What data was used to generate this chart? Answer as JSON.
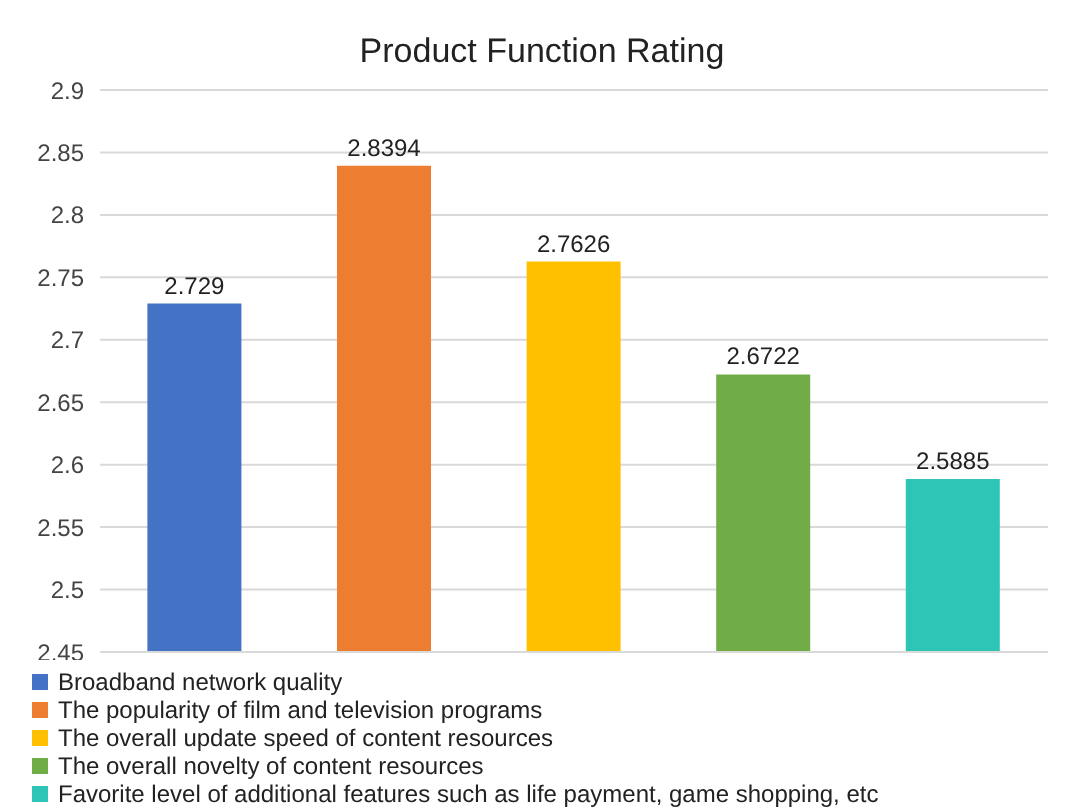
{
  "chart_data": {
    "type": "bar",
    "title": "Product Function Rating",
    "categories": [
      null,
      null,
      null,
      null,
      null
    ],
    "series": [
      {
        "name": "Broadband network quality",
        "color": "#4472c4",
        "values": [
          2.729,
          null,
          null,
          null,
          null
        ]
      },
      {
        "name": "The popularity of film and television programs",
        "color": "#ed7d31",
        "values": [
          null,
          2.8394,
          null,
          null,
          null
        ]
      },
      {
        "name": "The overall update speed of content resources",
        "color": "#ffc000",
        "values": [
          null,
          null,
          2.7626,
          null,
          null
        ]
      },
      {
        "name": "The overall novelty of content resources",
        "color": "#70ad47",
        "values": [
          null,
          null,
          null,
          2.6722,
          null
        ]
      },
      {
        "name": "Favorite level of additional features such as life payment, game shopping, etc",
        "color": "#2ec4b6",
        "values": [
          null,
          null,
          null,
          null,
          2.5885
        ]
      }
    ],
    "ylim": [
      2.45,
      2.9
    ],
    "yticks": [
      2.45,
      2.5,
      2.55,
      2.6,
      2.65,
      2.7,
      2.75,
      2.8,
      2.85,
      2.9
    ],
    "grid": "y",
    "legend": "bottom",
    "data_labels": true
  }
}
